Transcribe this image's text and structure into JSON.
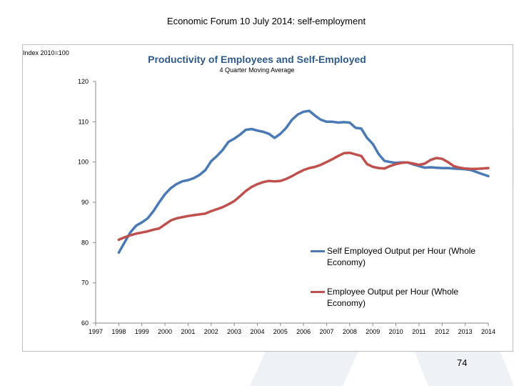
{
  "slide": {
    "title": "Economic Forum 10 July 2014: self-employment",
    "page_number": "74"
  },
  "chart_data": {
    "type": "line",
    "title": "Productivity of Employees and Self-Employed",
    "subtitle": "4 Quarter Moving Average",
    "ylabel": "Index 2010=100",
    "xlabel": "",
    "ylim": [
      60,
      120
    ],
    "yticks": [
      60,
      70,
      80,
      90,
      100,
      110,
      120
    ],
    "xlim": [
      1997,
      2014
    ],
    "xticks": [
      "1997",
      "1998",
      "1999",
      "2000",
      "2001",
      "2002",
      "2003",
      "2004",
      "2005",
      "2006",
      "2007",
      "2008",
      "2009",
      "2010",
      "2011",
      "2012",
      "2013",
      "2014"
    ],
    "grid": false,
    "legend_position": "right",
    "series": [
      {
        "name": "Self Employed Output per Hour (Whole Economy)",
        "color": "#4a7ab5",
        "points": [
          [
            1998.0,
            77.5
          ],
          [
            1998.25,
            80.0
          ],
          [
            1998.5,
            82.5
          ],
          [
            1998.75,
            84.2
          ],
          [
            1999.0,
            85.0
          ],
          [
            1999.25,
            86.0
          ],
          [
            1999.5,
            87.8
          ],
          [
            1999.75,
            90.0
          ],
          [
            2000.0,
            92.0
          ],
          [
            2000.25,
            93.5
          ],
          [
            2000.5,
            94.5
          ],
          [
            2000.75,
            95.2
          ],
          [
            2001.0,
            95.5
          ],
          [
            2001.25,
            96.0
          ],
          [
            2001.5,
            96.8
          ],
          [
            2001.75,
            98.0
          ],
          [
            2002.0,
            100.2
          ],
          [
            2002.25,
            101.5
          ],
          [
            2002.5,
            103.0
          ],
          [
            2002.75,
            105.0
          ],
          [
            2003.0,
            105.8
          ],
          [
            2003.25,
            106.8
          ],
          [
            2003.5,
            108.0
          ],
          [
            2003.75,
            108.2
          ],
          [
            2004.0,
            107.8
          ],
          [
            2004.25,
            107.5
          ],
          [
            2004.5,
            107.0
          ],
          [
            2004.75,
            106.0
          ],
          [
            2005.0,
            107.0
          ],
          [
            2005.25,
            108.5
          ],
          [
            2005.5,
            110.5
          ],
          [
            2005.75,
            111.8
          ],
          [
            2006.0,
            112.5
          ],
          [
            2006.25,
            112.7
          ],
          [
            2006.5,
            111.5
          ],
          [
            2006.75,
            110.5
          ],
          [
            2007.0,
            110.0
          ],
          [
            2007.25,
            110.0
          ],
          [
            2007.5,
            109.8
          ],
          [
            2007.75,
            109.9
          ],
          [
            2008.0,
            109.8
          ],
          [
            2008.25,
            108.5
          ],
          [
            2008.5,
            108.3
          ],
          [
            2008.75,
            106.0
          ],
          [
            2009.0,
            104.5
          ],
          [
            2009.25,
            102.0
          ],
          [
            2009.5,
            100.3
          ],
          [
            2009.75,
            100.0
          ],
          [
            2010.0,
            99.8
          ],
          [
            2010.25,
            99.9
          ],
          [
            2010.5,
            99.9
          ],
          [
            2010.75,
            99.4
          ],
          [
            2011.0,
            99.0
          ],
          [
            2011.25,
            98.6
          ],
          [
            2011.5,
            98.7
          ],
          [
            2011.75,
            98.6
          ],
          [
            2012.0,
            98.5
          ],
          [
            2012.25,
            98.5
          ],
          [
            2012.5,
            98.4
          ],
          [
            2012.75,
            98.3
          ],
          [
            2013.0,
            98.2
          ],
          [
            2013.25,
            98.0
          ],
          [
            2013.5,
            97.5
          ],
          [
            2013.75,
            97.0
          ],
          [
            2014.0,
            96.5
          ]
        ]
      },
      {
        "name": "Employee Output per Hour (Whole Economy)",
        "color": "#c0504d",
        "points": [
          [
            1998.0,
            80.7
          ],
          [
            1998.25,
            81.3
          ],
          [
            1998.5,
            81.8
          ],
          [
            1998.75,
            82.2
          ],
          [
            1999.0,
            82.5
          ],
          [
            1999.25,
            82.8
          ],
          [
            1999.5,
            83.2
          ],
          [
            1999.75,
            83.5
          ],
          [
            2000.0,
            84.5
          ],
          [
            2000.25,
            85.5
          ],
          [
            2000.5,
            86.0
          ],
          [
            2000.75,
            86.3
          ],
          [
            2001.0,
            86.6
          ],
          [
            2001.25,
            86.8
          ],
          [
            2001.5,
            87.0
          ],
          [
            2001.75,
            87.2
          ],
          [
            2002.0,
            87.8
          ],
          [
            2002.25,
            88.3
          ],
          [
            2002.5,
            88.8
          ],
          [
            2002.75,
            89.5
          ],
          [
            2003.0,
            90.3
          ],
          [
            2003.25,
            91.5
          ],
          [
            2003.5,
            92.8
          ],
          [
            2003.75,
            93.8
          ],
          [
            2004.0,
            94.5
          ],
          [
            2004.25,
            95.0
          ],
          [
            2004.5,
            95.3
          ],
          [
            2004.75,
            95.2
          ],
          [
            2005.0,
            95.3
          ],
          [
            2005.25,
            95.8
          ],
          [
            2005.5,
            96.5
          ],
          [
            2005.75,
            97.3
          ],
          [
            2006.0,
            98.0
          ],
          [
            2006.25,
            98.5
          ],
          [
            2006.5,
            98.8
          ],
          [
            2006.75,
            99.3
          ],
          [
            2007.0,
            100.0
          ],
          [
            2007.25,
            100.7
          ],
          [
            2007.5,
            101.5
          ],
          [
            2007.75,
            102.2
          ],
          [
            2008.0,
            102.3
          ],
          [
            2008.25,
            101.9
          ],
          [
            2008.5,
            101.5
          ],
          [
            2008.75,
            99.5
          ],
          [
            2009.0,
            98.8
          ],
          [
            2009.25,
            98.5
          ],
          [
            2009.5,
            98.4
          ],
          [
            2009.75,
            99.0
          ],
          [
            2010.0,
            99.5
          ],
          [
            2010.25,
            99.8
          ],
          [
            2010.5,
            99.9
          ],
          [
            2010.75,
            99.6
          ],
          [
            2011.0,
            99.3
          ],
          [
            2011.25,
            99.6
          ],
          [
            2011.5,
            100.5
          ],
          [
            2011.75,
            101.0
          ],
          [
            2012.0,
            100.8
          ],
          [
            2012.25,
            100.0
          ],
          [
            2012.5,
            99.0
          ],
          [
            2012.75,
            98.6
          ],
          [
            2013.0,
            98.4
          ],
          [
            2013.25,
            98.3
          ],
          [
            2013.5,
            98.3
          ],
          [
            2013.75,
            98.4
          ],
          [
            2014.0,
            98.5
          ]
        ]
      }
    ]
  }
}
